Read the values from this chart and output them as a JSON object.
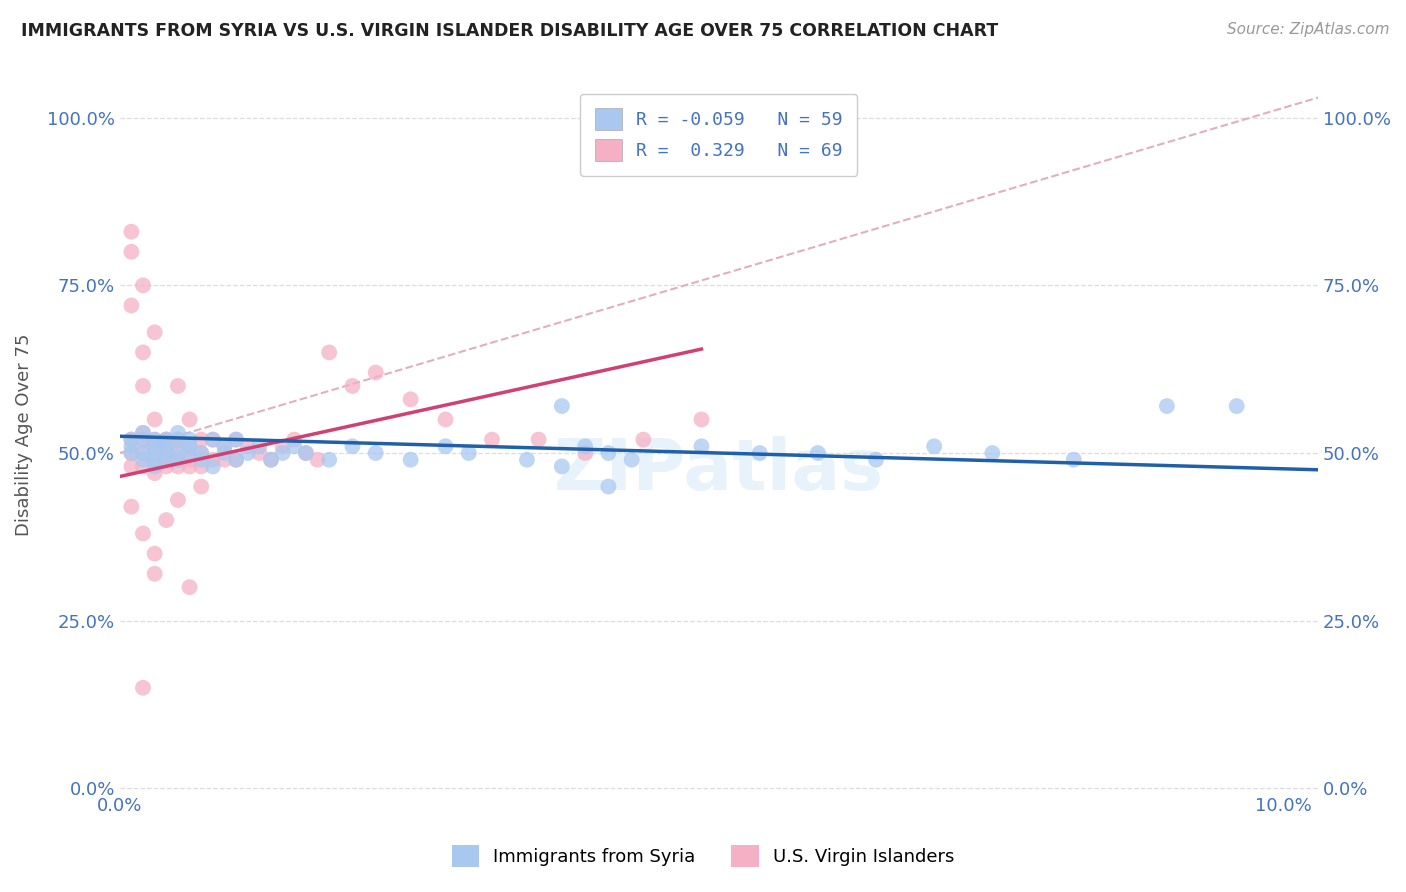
{
  "title": "IMMIGRANTS FROM SYRIA VS U.S. VIRGIN ISLANDER DISABILITY AGE OVER 75 CORRELATION CHART",
  "source": "Source: ZipAtlas.com",
  "ylabel": "Disability Age Over 75",
  "legend_label1": "Immigrants from Syria",
  "legend_label2": "U.S. Virgin Islanders",
  "R1": -0.059,
  "N1": 59,
  "R2": 0.329,
  "N2": 69,
  "color1": "#a8c8f0",
  "color2": "#f5b0c5",
  "line_color1": "#2060a8",
  "line_color2": "#d04070",
  "dash_color": "#e0b0c0",
  "xlim": [
    0.0,
    0.103
  ],
  "ylim": [
    -0.005,
    1.06
  ],
  "ytick_vals": [
    0.0,
    0.25,
    0.5,
    0.75,
    1.0
  ],
  "ytick_labels": [
    "0.0%",
    "25.0%",
    "50.0%",
    "75.0%",
    "100.0%"
  ],
  "xtick_vals": [
    0.0,
    0.02,
    0.04,
    0.06,
    0.08,
    0.1
  ],
  "xtick_labels": [
    "0.0%",
    "",
    "",
    "",
    "",
    "10.0%"
  ],
  "watermark": "ZIPatlas",
  "title_color": "#222222",
  "source_color": "#999999",
  "ylabel_color": "#555555",
  "tick_color": "#4472c4",
  "grid_color": "#dddddd",
  "blue_x": [
    0.001,
    0.001,
    0.001,
    0.002,
    0.002,
    0.002,
    0.002,
    0.003,
    0.003,
    0.003,
    0.003,
    0.003,
    0.004,
    0.004,
    0.004,
    0.004,
    0.005,
    0.005,
    0.005,
    0.005,
    0.006,
    0.006,
    0.006,
    0.007,
    0.007,
    0.008,
    0.008,
    0.009,
    0.009,
    0.01,
    0.01,
    0.011,
    0.012,
    0.013,
    0.014,
    0.015,
    0.016,
    0.018,
    0.02,
    0.022,
    0.025,
    0.028,
    0.03,
    0.035,
    0.038,
    0.04,
    0.042,
    0.044,
    0.05,
    0.055,
    0.06,
    0.065,
    0.038,
    0.042,
    0.07,
    0.075,
    0.082,
    0.09,
    0.096
  ],
  "blue_y": [
    0.51,
    0.52,
    0.5,
    0.53,
    0.5,
    0.49,
    0.52,
    0.51,
    0.5,
    0.49,
    0.52,
    0.48,
    0.51,
    0.5,
    0.52,
    0.49,
    0.52,
    0.5,
    0.49,
    0.53,
    0.51,
    0.5,
    0.52,
    0.5,
    0.49,
    0.52,
    0.48,
    0.51,
    0.5,
    0.52,
    0.49,
    0.5,
    0.51,
    0.49,
    0.5,
    0.51,
    0.5,
    0.49,
    0.51,
    0.5,
    0.49,
    0.51,
    0.5,
    0.49,
    0.48,
    0.51,
    0.5,
    0.49,
    0.51,
    0.5,
    0.5,
    0.49,
    0.57,
    0.45,
    0.51,
    0.5,
    0.49,
    0.57,
    0.57
  ],
  "pink_x": [
    0.001,
    0.001,
    0.001,
    0.002,
    0.002,
    0.002,
    0.002,
    0.003,
    0.003,
    0.003,
    0.003,
    0.004,
    0.004,
    0.004,
    0.004,
    0.005,
    0.005,
    0.005,
    0.005,
    0.006,
    0.006,
    0.006,
    0.007,
    0.007,
    0.007,
    0.008,
    0.008,
    0.009,
    0.009,
    0.01,
    0.01,
    0.011,
    0.012,
    0.013,
    0.014,
    0.015,
    0.016,
    0.017,
    0.018,
    0.02,
    0.022,
    0.025,
    0.028,
    0.032,
    0.036,
    0.04,
    0.045,
    0.05,
    0.001,
    0.002,
    0.003,
    0.002,
    0.001,
    0.003,
    0.004,
    0.005,
    0.006,
    0.007,
    0.001,
    0.002,
    0.003,
    0.004,
    0.002,
    0.005,
    0.003,
    0.006,
    0.001,
    0.002,
    0.004
  ],
  "pink_y": [
    0.52,
    0.5,
    0.48,
    0.53,
    0.5,
    0.48,
    0.52,
    0.51,
    0.49,
    0.47,
    0.52,
    0.51,
    0.49,
    0.48,
    0.52,
    0.51,
    0.49,
    0.48,
    0.52,
    0.51,
    0.49,
    0.48,
    0.52,
    0.5,
    0.48,
    0.52,
    0.49,
    0.51,
    0.49,
    0.52,
    0.49,
    0.51,
    0.5,
    0.49,
    0.51,
    0.52,
    0.5,
    0.49,
    0.65,
    0.6,
    0.62,
    0.58,
    0.55,
    0.52,
    0.52,
    0.5,
    0.52,
    0.55,
    0.8,
    0.75,
    0.68,
    0.6,
    0.83,
    0.55,
    0.52,
    0.6,
    0.55,
    0.45,
    0.42,
    0.38,
    0.35,
    0.4,
    0.15,
    0.43,
    0.32,
    0.3,
    0.72,
    0.65,
    0.5
  ],
  "blue_line_x": [
    0.0,
    0.103
  ],
  "blue_line_y": [
    0.525,
    0.475
  ],
  "pink_line_x": [
    0.0,
    0.05
  ],
  "pink_line_y": [
    0.465,
    0.655
  ],
  "dash_line_x": [
    0.0,
    0.103
  ],
  "dash_line_y": [
    0.5,
    1.03
  ]
}
